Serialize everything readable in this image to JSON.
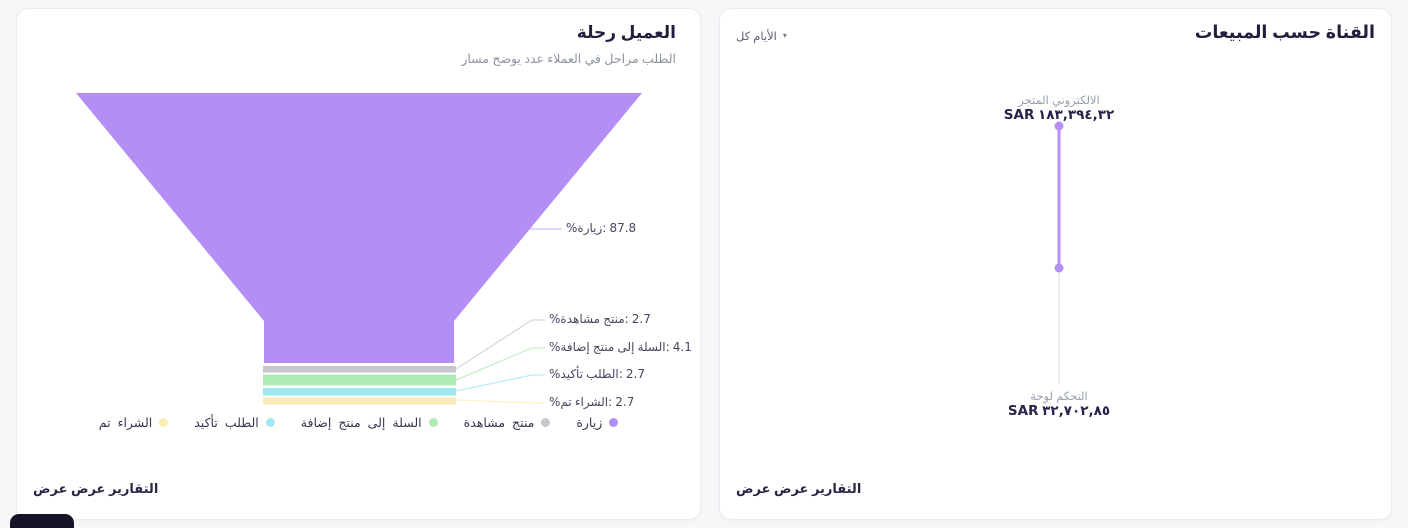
{
  "page": {
    "background": "#f7f7f9"
  },
  "sales_card": {
    "title": "المبيعات حسب القناة",
    "filter": {
      "label": "كل الأيام",
      "caret": "▾"
    },
    "points": [
      {
        "name": "المتجر الالكتروني",
        "value": "SAR ١٨٣,٣٩٤,٣٢"
      },
      {
        "name": "لوحة التحكم",
        "value": "SAR ٣٢,٧٠٢,٨٥"
      }
    ],
    "footer_link": "عرض عرض التقارير",
    "line_color": "#b48ff5",
    "faint_line_color": "#e9e7ef"
  },
  "journey_card": {
    "title": "رحلة العميل",
    "subtitle": "مسار يوضح عدد العملاء في مراحل الطلب",
    "percent_sign": "%",
    "stages": [
      {
        "name": "زيارة",
        "value": "87.8",
        "color": "#b38ef5"
      },
      {
        "name": "مشاهدة منتج",
        "value": "2.7",
        "color": "#c9c5ce"
      },
      {
        "name": "إضافة منتج إلى السلة",
        "value": "4.1",
        "color": "#b0eab6"
      },
      {
        "name": "تأكيد الطلب",
        "value": "2.7",
        "color": "#9ee9f0"
      },
      {
        "name": "تم الشراء",
        "value": "2.7",
        "color": "#f9edb3"
      }
    ],
    "footer_link": "عرض عرض التقارير"
  },
  "chart_data": [
    {
      "type": "funnel",
      "title": "رحلة العميل",
      "subtitle": "مسار يوضح عدد العملاء في مراحل الطلب",
      "categories": [
        "زيارة",
        "مشاهدة منتج",
        "إضافة منتج إلى السلة",
        "تأكيد الطلب",
        "تم الشراء"
      ],
      "values": [
        87.8,
        2.7,
        4.1,
        2.7,
        2.7
      ],
      "unit": "%",
      "legend_position": "bottom"
    },
    {
      "type": "line",
      "title": "المبيعات حسب القناة",
      "categories": [
        "المتجر الالكتروني",
        "لوحة التحكم"
      ],
      "values": [
        "SAR ١٨٣,٣٩٤,٣٢",
        "SAR ٣٢,٧٠٢,٨٥"
      ],
      "orientation": "vertical",
      "filter": "كل الأيام"
    }
  ]
}
